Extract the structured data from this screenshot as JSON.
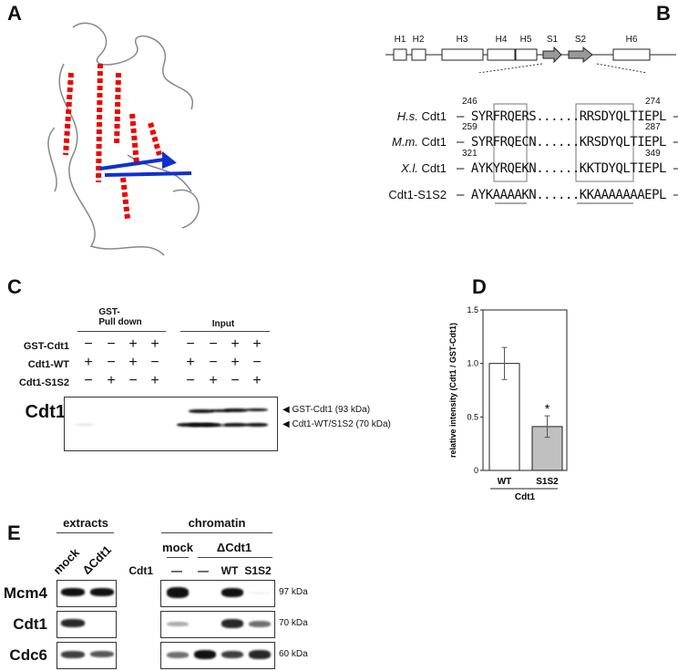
{
  "panels": {
    "a": "A",
    "b": "B",
    "c": "C",
    "d": "D",
    "e": "E"
  },
  "panel_b": {
    "domains": [
      "H1",
      "H2",
      "H3",
      "H4",
      "H5",
      "S1",
      "S2",
      "H6"
    ],
    "alignment": [
      {
        "species": "H.s.",
        "protein": "Cdt1",
        "start": "246",
        "end": "274",
        "sequence": "SYRFRQERS......RRSDYQLTIEPL"
      },
      {
        "species": "M.m.",
        "protein": "Cdt1",
        "start": "259",
        "end": "287",
        "sequence": "SYRFRQECN......KRSDYQLTIEPL"
      },
      {
        "species": "X.l.",
        "protein": "Cdt1",
        "start": "321",
        "end": "349",
        "sequence": "AYKYRQEKN......KKTDYQLTIEPL"
      },
      {
        "species": "",
        "protein": "Cdt1-S1S2",
        "start": "",
        "end": "",
        "sequence": "AYKAAAAKN......KKAAAAAAAEPL"
      }
    ]
  },
  "panel_c": {
    "groups": [
      "GST-\nPull down",
      "Input"
    ],
    "rows": [
      {
        "label": "GST-Cdt1",
        "values": [
          "−",
          "−",
          "+",
          "+",
          "−",
          "−",
          "+",
          "+"
        ]
      },
      {
        "label": "Cdt1-WT",
        "values": [
          "+",
          "−",
          "+",
          "−",
          "+",
          "−",
          "+",
          "−"
        ]
      },
      {
        "label": "Cdt1-S1S2",
        "values": [
          "−",
          "+",
          "−",
          "+",
          "−",
          "+",
          "−",
          "+"
        ]
      }
    ],
    "blot_label": "Cdt1",
    "band_labels": [
      "◀ GST-Cdt1 (93 kDa)",
      "◀ Cdt1-WT/S1S2 (70 kDa)"
    ]
  },
  "chart_data": {
    "type": "bar",
    "categories": [
      "WT",
      "S1S2"
    ],
    "values": [
      1.0,
      0.41
    ],
    "errors": [
      0.15,
      0.1
    ],
    "bar_colors": [
      "#ffffff",
      "#c0c0c0"
    ],
    "annotations": [
      "",
      "*"
    ],
    "ylabel": "relative intensity (Cdt1 / GST-Cdt1)",
    "xlabel": "Cdt1",
    "ylim": [
      0,
      1.5
    ],
    "yticks": [
      "0",
      "0.5",
      "1.0",
      "1.5"
    ]
  },
  "panel_e": {
    "extracts_title": "extracts",
    "extracts_lanes": [
      "mock",
      "ΔCdt1"
    ],
    "chromatin_title": "chromatin",
    "chromatin_groups": [
      "mock",
      "ΔCdt1"
    ],
    "cdt1_row_label": "Cdt1",
    "cdt1_row_values": [
      "—",
      "—",
      "WT",
      "S1S2"
    ],
    "blots": [
      {
        "label": "Mcm4",
        "size": "97 kDa"
      },
      {
        "label": "Cdt1",
        "size": "70 kDa"
      },
      {
        "label": "Cdc6",
        "size": "60 kDa"
      }
    ]
  }
}
